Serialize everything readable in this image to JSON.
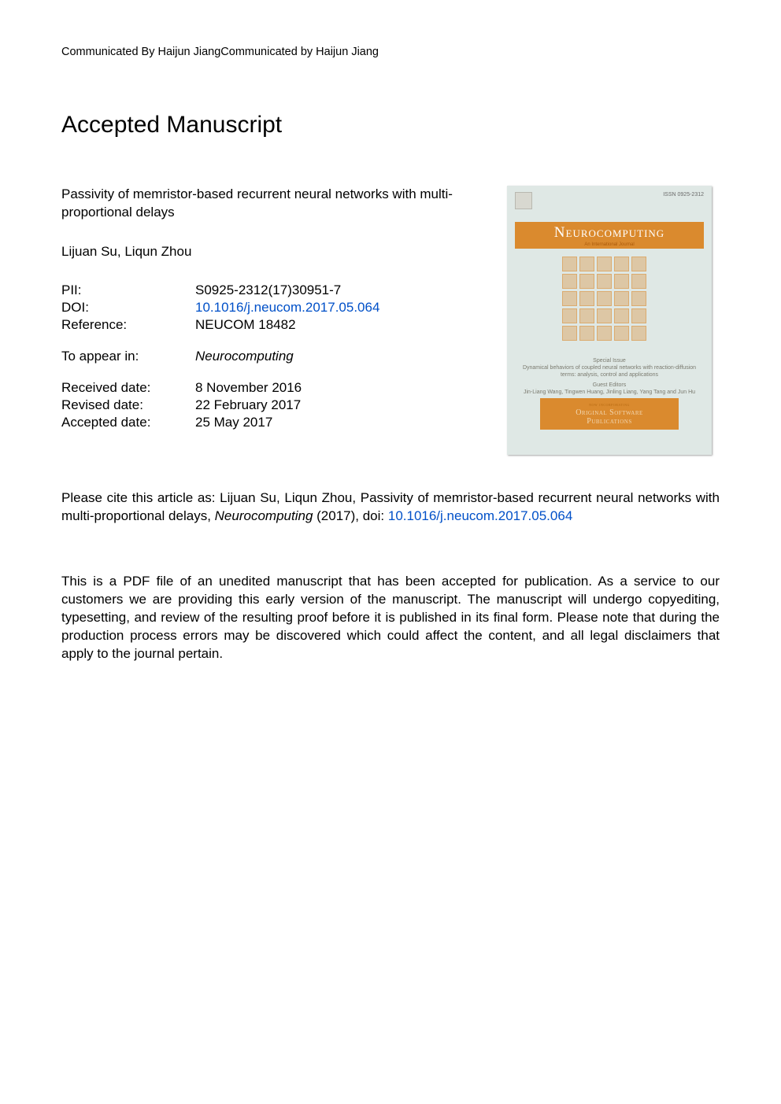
{
  "communicated": "Communicated By Haijun JiangCommunicated by Haijun Jiang",
  "heading": "Accepted Manuscript",
  "title": "Passivity of memristor-based recurrent neural networks with multi-proportional delays",
  "authors": "Lijuan Su, Liqun Zhou",
  "meta": {
    "pii_label": "PII:",
    "pii": "S0925-2312(17)30951-7",
    "doi_label": "DOI:",
    "doi": "10.1016/j.neucom.2017.05.064",
    "ref_label": "Reference:",
    "ref": "NEUCOM 18482",
    "appear_label": "To appear in:",
    "appear": "Neurocomputing",
    "recv_label": "Received date:",
    "recv": "8 November 2016",
    "rev_label": "Revised date:",
    "rev": "22 February 2017",
    "acc_label": "Accepted date:",
    "acc": "25 May 2017"
  },
  "citation_pre": "Please cite this article as: Lijuan Su, Liqun Zhou, Passivity of memristor-based recurrent neural networks with multi-proportional delays, ",
  "citation_journal": "Neurocomputing",
  "citation_year": " (2017), doi: ",
  "citation_doi": "10.1016/j.neucom.2017.05.064",
  "disclaimer": "This is a PDF file of an unedited manuscript that has been accepted for publication. As a service to our customers we are providing this early version of the manuscript. The manuscript will undergo copyediting, typesetting, and review of the resulting proof before it is published in its final form. Please note that during the production process errors may be discovered which could affect the content, and all legal disclaimers that apply to the journal pertain.",
  "cover": {
    "issn": "ISSN 0925-2312",
    "title": "Neurocomputing",
    "subtitle": "An International Journal",
    "special_label": "Special Issue",
    "special_title": "Dynamical behaviors of coupled neural networks with reaction-diffusion terms: analysis, control and applications",
    "guest_label": "Guest Editors",
    "guest_names": "Jin-Liang Wang, Tingwen Huang, Jinling Liang, Yang Tang and Jun Hu",
    "band2_top": "now incorporating",
    "band2_l1": "Original Software",
    "band2_l2": "Publications",
    "chip_rows": 5,
    "chip_cols": 5,
    "colors": {
      "cover_bg": "#dfe8e5",
      "band": "#da8a2e",
      "band_text": "#ffffff",
      "chip_fill": "rgba(218,138,46,0.35)",
      "chip_border": "rgba(218,138,46,0.45)",
      "link": "#0050c8"
    }
  }
}
